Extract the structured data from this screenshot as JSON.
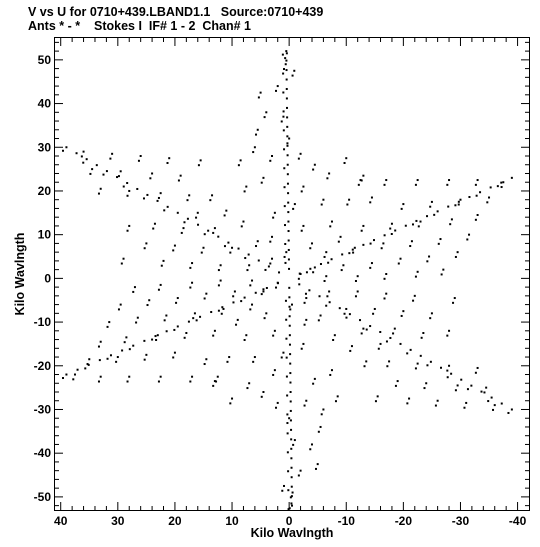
{
  "header": {
    "line1": "V vs U for 0710+439.LBAND1.1   Source:0710+439",
    "line2": "Ants * - *    Stokes I  IF# 1 - 2  Chan# 1"
  },
  "chart_data": {
    "type": "scatter",
    "title": "V vs U for 0710+439.LBAND1.1   Source:0710+439",
    "subtitle": "Ants * - *    Stokes I  IF# 1 - 2  Chan# 1",
    "xlabel": "Kilo Wavlngth",
    "ylabel": "Kilo Wavlngth",
    "xlim": [
      41,
      -42
    ],
    "ylim": [
      -53,
      55
    ],
    "x_reversed": true,
    "grid": false,
    "legend": "none",
    "x_ticks": [
      40,
      30,
      20,
      10,
      0,
      -10,
      -20,
      -30,
      -40
    ],
    "y_ticks": [
      -50,
      -40,
      -30,
      -20,
      -10,
      0,
      10,
      20,
      30,
      40,
      50
    ],
    "marker": "dot",
    "marker_color": "#000000",
    "pattern": "six-armed star (uv-coverage)",
    "arm_tips": [
      {
        "u": 0.5,
        "v": 52
      },
      {
        "u": 39,
        "v": 30
      },
      {
        "u": -39,
        "v": 23
      },
      {
        "u": 39,
        "v": -22
      },
      {
        "u": -39,
        "v": -30
      },
      {
        "u": -0.5,
        "v": -52
      }
    ],
    "points": [
      [
        0.4,
        51.5
      ],
      [
        -0.4,
        -51.5
      ],
      [
        0.6,
        49.0
      ],
      [
        -0.6,
        -49.0
      ],
      [
        -0.9,
        47.5
      ],
      [
        0.9,
        -47.5
      ],
      [
        2.0,
        44.0
      ],
      [
        -2.0,
        -44.0
      ],
      [
        5.0,
        42.5
      ],
      [
        -5.0,
        -42.5
      ],
      [
        4.0,
        38.0
      ],
      [
        -4.0,
        -38.0
      ],
      [
        1.0,
        37.0
      ],
      [
        -1.0,
        -37.0
      ],
      [
        5.5,
        34.0
      ],
      [
        -5.5,
        -34.0
      ],
      [
        6.0,
        30.0
      ],
      [
        -6.0,
        -30.0
      ],
      [
        3.0,
        28.0
      ],
      [
        -3.0,
        -28.0
      ],
      [
        0.0,
        32.0
      ],
      [
        0.0,
        -32.0
      ],
      [
        8.5,
        27.0
      ],
      [
        -8.5,
        -27.0
      ],
      [
        -2.0,
        28.5
      ],
      [
        2.0,
        -28.5
      ],
      [
        -4.5,
        26.0
      ],
      [
        4.5,
        -26.0
      ],
      [
        -7.0,
        24.0
      ],
      [
        7.0,
        -24.0
      ],
      [
        -10.0,
        27.5
      ],
      [
        10.0,
        -27.5
      ],
      [
        -12.5,
        22.5
      ],
      [
        12.5,
        -22.5
      ],
      [
        4.5,
        23.0
      ],
      [
        -4.5,
        -23.0
      ],
      [
        7.5,
        21.0
      ],
      [
        -7.5,
        -21.0
      ],
      [
        -2.5,
        21.0
      ],
      [
        2.5,
        -21.0
      ],
      [
        -6.0,
        18.0
      ],
      [
        6.0,
        -18.0
      ],
      [
        -10.5,
        18.0
      ],
      [
        10.5,
        -18.0
      ],
      [
        -14.5,
        18.5
      ],
      [
        14.5,
        -18.5
      ],
      [
        36.0,
        29.0
      ],
      [
        -36.0,
        -29.0
      ],
      [
        31.0,
        28.5
      ],
      [
        -31.0,
        -28.5
      ],
      [
        26.0,
        28.0
      ],
      [
        -26.0,
        -28.0
      ],
      [
        21.0,
        27.5
      ],
      [
        -21.0,
        -27.5
      ],
      [
        15.5,
        27.0
      ],
      [
        -15.5,
        -27.0
      ],
      [
        34.5,
        25.0
      ],
      [
        -34.5,
        -25.0
      ],
      [
        29.5,
        24.5
      ],
      [
        -29.5,
        -24.5
      ],
      [
        24.0,
        24.0
      ],
      [
        -24.0,
        -24.0
      ],
      [
        19.0,
        23.5
      ],
      [
        -19.0,
        -23.5
      ],
      [
        33.0,
        20.5
      ],
      [
        -33.0,
        -20.5
      ],
      [
        28.0,
        20.0
      ],
      [
        -28.0,
        -20.0
      ],
      [
        22.5,
        19.5
      ],
      [
        -22.5,
        -19.5
      ],
      [
        17.5,
        19.0
      ],
      [
        -17.5,
        -19.0
      ],
      [
        13.5,
        19.0
      ],
      [
        -13.5,
        -19.0
      ],
      [
        16.0,
        15.0
      ],
      [
        -16.0,
        -15.0
      ],
      [
        11.0,
        15.5
      ],
      [
        -11.0,
        -15.5
      ],
      [
        23.5,
        12.5
      ],
      [
        -23.5,
        -12.5
      ],
      [
        28.0,
        12.0
      ],
      [
        -28.0,
        -12.0
      ],
      [
        18.5,
        11.5
      ],
      [
        -18.5,
        -11.5
      ],
      [
        13.0,
        11.5
      ],
      [
        -13.0,
        -11.5
      ],
      [
        8.0,
        13.0
      ],
      [
        -8.0,
        -13.0
      ],
      [
        25.0,
        8.0
      ],
      [
        -25.0,
        -8.0
      ],
      [
        20.0,
        7.5
      ],
      [
        -20.0,
        -7.5
      ],
      [
        15.0,
        7.0
      ],
      [
        -15.0,
        -7.0
      ],
      [
        10.0,
        7.0
      ],
      [
        -10.0,
        -7.0
      ],
      [
        5.5,
        8.5
      ],
      [
        -5.5,
        -8.5
      ],
      [
        29.0,
        4.5
      ],
      [
        -29.0,
        -4.5
      ],
      [
        22.0,
        4.0
      ],
      [
        -22.0,
        -4.0
      ],
      [
        17.0,
        3.5
      ],
      [
        -17.0,
        -3.5
      ],
      [
        12.0,
        3.0
      ],
      [
        -12.0,
        -3.0
      ],
      [
        7.0,
        3.0
      ],
      [
        -7.0,
        -3.0
      ],
      [
        3.0,
        4.5
      ],
      [
        -3.0,
        -4.5
      ],
      [
        -37.5,
        22.0
      ],
      [
        37.5,
        -22.0
      ],
      [
        -33.0,
        22.5
      ],
      [
        33.0,
        -22.5
      ],
      [
        -28.0,
        22.5
      ],
      [
        28.0,
        -22.5
      ],
      [
        -22.5,
        22.5
      ],
      [
        22.5,
        -22.5
      ],
      [
        -17.0,
        22.5
      ],
      [
        17.0,
        -22.5
      ],
      [
        -13.0,
        23.5
      ],
      [
        13.0,
        -23.5
      ],
      [
        -35.0,
        18.5
      ],
      [
        35.0,
        -18.5
      ],
      [
        -30.0,
        18.0
      ],
      [
        30.0,
        -18.0
      ],
      [
        -25.0,
        17.5
      ],
      [
        25.0,
        -17.5
      ],
      [
        -20.0,
        17.0
      ],
      [
        20.0,
        -17.0
      ],
      [
        -33.0,
        14.5
      ],
      [
        33.0,
        -14.5
      ],
      [
        -28.5,
        13.5
      ],
      [
        28.5,
        -13.5
      ],
      [
        -23.0,
        13.0
      ],
      [
        23.0,
        -13.0
      ],
      [
        -18.0,
        12.5
      ],
      [
        18.0,
        -12.5
      ],
      [
        -13.0,
        12.0
      ],
      [
        13.0,
        -12.0
      ],
      [
        -31.5,
        10.0
      ],
      [
        31.5,
        -10.0
      ],
      [
        -26.5,
        9.0
      ],
      [
        26.5,
        -9.0
      ],
      [
        -21.5,
        8.5
      ],
      [
        21.5,
        -8.5
      ],
      [
        -16.5,
        8.0
      ],
      [
        16.5,
        -8.0
      ],
      [
        -11.5,
        7.0
      ],
      [
        11.5,
        -7.0
      ],
      [
        -6.5,
        6.0
      ],
      [
        6.5,
        -6.0
      ],
      [
        -29.5,
        6.0
      ],
      [
        29.5,
        -6.0
      ],
      [
        -24.5,
        5.0
      ],
      [
        24.5,
        -5.0
      ],
      [
        -19.5,
        4.5
      ],
      [
        19.5,
        -4.5
      ],
      [
        -14.5,
        3.5
      ],
      [
        14.5,
        -3.5
      ],
      [
        -9.5,
        3.0
      ],
      [
        9.5,
        -3.0
      ],
      [
        -4.5,
        2.5
      ],
      [
        4.5,
        -2.5
      ],
      [
        -27.0,
        2.0
      ],
      [
        27.0,
        -2.0
      ],
      [
        -22.5,
        1.5
      ],
      [
        22.5,
        -1.5
      ],
      [
        -17.0,
        1.0
      ],
      [
        17.0,
        -1.0
      ],
      [
        -12.0,
        0.5
      ],
      [
        12.0,
        -0.5
      ],
      [
        -6.5,
        0.5
      ],
      [
        6.5,
        -0.5
      ],
      [
        -2.0,
        1.0
      ],
      [
        2.0,
        -1.0
      ],
      [
        -2.5,
        12.0
      ],
      [
        2.5,
        -12.0
      ],
      [
        -1.0,
        17.0
      ],
      [
        1.0,
        -17.0
      ],
      [
        2.5,
        15.0
      ],
      [
        -2.5,
        -15.0
      ],
      [
        3.0,
        9.5
      ],
      [
        -3.0,
        -9.5
      ],
      [
        -4.0,
        8.0
      ],
      [
        4.0,
        -8.0
      ],
      [
        0.5,
        6.0
      ],
      [
        -0.5,
        -6.0
      ],
      [
        -7.5,
        13.0
      ],
      [
        7.5,
        -13.0
      ],
      [
        -9.0,
        9.5
      ],
      [
        9.0,
        -9.5
      ]
    ]
  }
}
